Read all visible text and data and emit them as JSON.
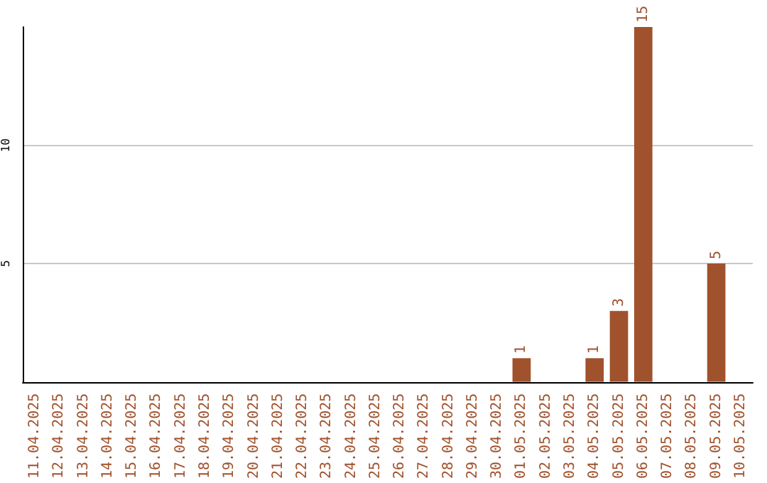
{
  "chart_data": {
    "type": "bar",
    "categories": [
      "11.04.2025",
      "12.04.2025",
      "13.04.2025",
      "14.04.2025",
      "15.04.2025",
      "16.04.2025",
      "17.04.2025",
      "18.04.2025",
      "19.04.2025",
      "20.04.2025",
      "21.04.2025",
      "22.04.2025",
      "23.04.2025",
      "24.04.2025",
      "25.04.2025",
      "26.04.2025",
      "27.04.2025",
      "28.04.2025",
      "29.04.2025",
      "30.04.2025",
      "01.05.2025",
      "02.05.2025",
      "03.05.2025",
      "04.05.2025",
      "05.05.2025",
      "06.05.2025",
      "07.05.2025",
      "08.05.2025",
      "09.05.2025",
      "10.05.2025"
    ],
    "values": [
      0,
      0,
      0,
      0,
      0,
      0,
      0,
      0,
      0,
      0,
      0,
      0,
      0,
      0,
      0,
      0,
      0,
      0,
      0,
      0,
      1,
      0,
      0,
      1,
      3,
      15,
      0,
      0,
      5,
      0
    ],
    "value_labels": [
      null,
      null,
      null,
      null,
      null,
      null,
      null,
      null,
      null,
      null,
      null,
      null,
      null,
      null,
      null,
      null,
      null,
      null,
      null,
      null,
      "1",
      null,
      null,
      "1",
      "3",
      "15",
      null,
      null,
      "5",
      null
    ],
    "color": "#a0522d",
    "ylim": [
      0,
      15
    ],
    "yticks": [
      5,
      10
    ],
    "grid": "y"
  }
}
